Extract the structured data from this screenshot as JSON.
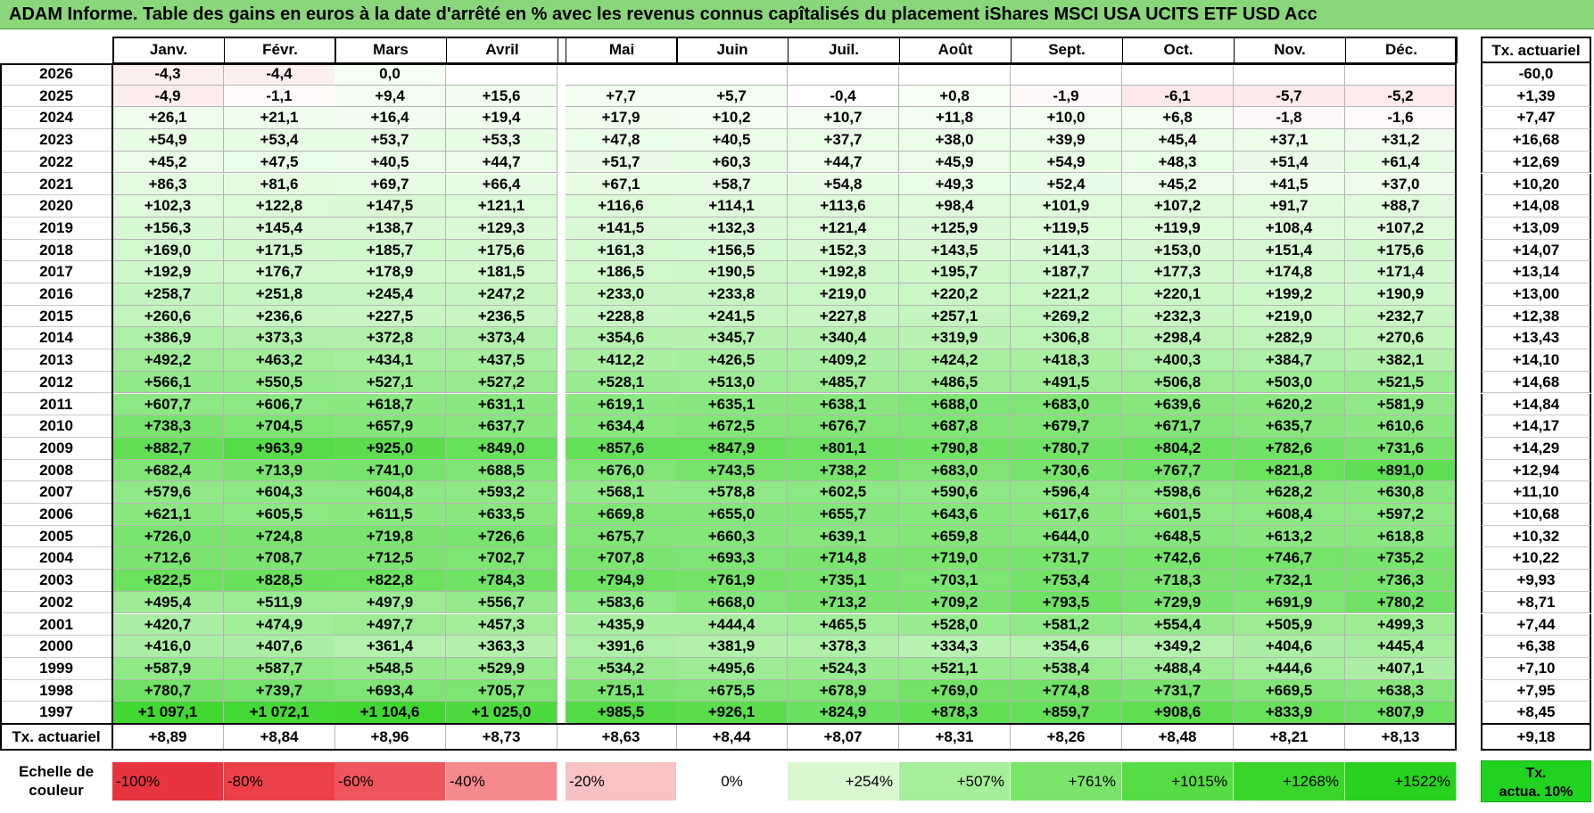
{
  "title": "ADAM Informe. Table des gains en euros à la date d'arrêté en % avec les revenus connus capîtalisés du placement iShares MSCI USA UCITS ETF USD Acc",
  "months": [
    "Janv.",
    "Févr.",
    "Mars",
    "Avril",
    "Mai",
    "Juin",
    "Juil.",
    "Août",
    "Sept.",
    "Oct.",
    "Nov.",
    "Déc."
  ],
  "right_header": "Tx. actuariel",
  "rows": [
    {
      "year": "2026",
      "values": [
        "-4,3",
        "-4,4",
        "0,0",
        "",
        "",
        "",
        "",
        "",
        "",
        "",
        "",
        ""
      ],
      "rate": "-60,0"
    },
    {
      "year": "2025",
      "values": [
        "-4,9",
        "-1,1",
        "+9,4",
        "+15,6",
        "+7,7",
        "+5,7",
        "-0,4",
        "+0,8",
        "-1,9",
        "-6,1",
        "-5,7",
        "-5,2"
      ],
      "rate": "+1,39"
    },
    {
      "year": "2024",
      "values": [
        "+26,1",
        "+21,1",
        "+16,4",
        "+19,4",
        "+17,9",
        "+10,2",
        "+10,7",
        "+11,8",
        "+10,0",
        "+6,8",
        "-1,8",
        "-1,6"
      ],
      "rate": "+7,47"
    },
    {
      "year": "2023",
      "values": [
        "+54,9",
        "+53,4",
        "+53,7",
        "+53,3",
        "+47,8",
        "+40,5",
        "+37,7",
        "+38,0",
        "+39,9",
        "+45,4",
        "+37,1",
        "+31,2"
      ],
      "rate": "+16,68"
    },
    {
      "year": "2022",
      "values": [
        "+45,2",
        "+47,5",
        "+40,5",
        "+44,7",
        "+51,7",
        "+60,3",
        "+44,7",
        "+45,9",
        "+54,9",
        "+48,3",
        "+51,4",
        "+61,4"
      ],
      "rate": "+12,69"
    },
    {
      "year": "2021",
      "values": [
        "+86,3",
        "+81,6",
        "+69,7",
        "+66,4",
        "+67,1",
        "+58,7",
        "+54,8",
        "+49,3",
        "+52,4",
        "+45,2",
        "+41,5",
        "+37,0"
      ],
      "rate": "+10,20"
    },
    {
      "year": "2020",
      "values": [
        "+102,3",
        "+122,8",
        "+147,5",
        "+121,1",
        "+116,6",
        "+114,1",
        "+113,6",
        "+98,4",
        "+101,9",
        "+107,2",
        "+91,7",
        "+88,7"
      ],
      "rate": "+14,08"
    },
    {
      "year": "2019",
      "values": [
        "+156,3",
        "+145,4",
        "+138,7",
        "+129,3",
        "+141,5",
        "+132,3",
        "+121,4",
        "+125,9",
        "+119,5",
        "+119,9",
        "+108,4",
        "+107,2"
      ],
      "rate": "+13,09"
    },
    {
      "year": "2018",
      "values": [
        "+169,0",
        "+171,5",
        "+185,7",
        "+175,6",
        "+161,3",
        "+156,5",
        "+152,3",
        "+143,5",
        "+141,3",
        "+153,0",
        "+151,4",
        "+175,6"
      ],
      "rate": "+14,07"
    },
    {
      "year": "2017",
      "values": [
        "+192,9",
        "+176,7",
        "+178,9",
        "+181,5",
        "+186,5",
        "+190,5",
        "+192,8",
        "+195,7",
        "+187,7",
        "+177,3",
        "+174,8",
        "+171,4"
      ],
      "rate": "+13,14"
    },
    {
      "year": "2016",
      "values": [
        "+258,7",
        "+251,8",
        "+245,4",
        "+247,2",
        "+233,0",
        "+233,8",
        "+219,0",
        "+220,2",
        "+221,2",
        "+220,1",
        "+199,2",
        "+190,9"
      ],
      "rate": "+13,00"
    },
    {
      "year": "2015",
      "values": [
        "+260,6",
        "+236,6",
        "+227,5",
        "+236,5",
        "+228,8",
        "+241,5",
        "+227,8",
        "+257,1",
        "+269,2",
        "+232,3",
        "+219,0",
        "+232,7"
      ],
      "rate": "+12,38"
    },
    {
      "year": "2014",
      "values": [
        "+386,9",
        "+373,3",
        "+372,8",
        "+373,4",
        "+354,6",
        "+345,7",
        "+340,4",
        "+319,9",
        "+306,8",
        "+298,4",
        "+282,9",
        "+270,6"
      ],
      "rate": "+13,43"
    },
    {
      "year": "2013",
      "values": [
        "+492,2",
        "+463,2",
        "+434,1",
        "+437,5",
        "+412,2",
        "+426,5",
        "+409,2",
        "+424,2",
        "+418,3",
        "+400,3",
        "+384,7",
        "+382,1"
      ],
      "rate": "+14,10"
    },
    {
      "year": "2012",
      "values": [
        "+566,1",
        "+550,5",
        "+527,1",
        "+527,2",
        "+528,1",
        "+513,0",
        "+485,7",
        "+486,5",
        "+491,5",
        "+506,8",
        "+503,0",
        "+521,5"
      ],
      "rate": "+14,68"
    },
    {
      "year": "2011",
      "values": [
        "+607,7",
        "+606,7",
        "+618,7",
        "+631,1",
        "+619,1",
        "+635,1",
        "+638,1",
        "+688,0",
        "+683,0",
        "+639,6",
        "+620,2",
        "+581,9"
      ],
      "rate": "+14,84"
    },
    {
      "year": "2010",
      "values": [
        "+738,3",
        "+704,5",
        "+657,9",
        "+637,7",
        "+634,4",
        "+672,5",
        "+676,7",
        "+687,8",
        "+679,7",
        "+671,7",
        "+635,7",
        "+610,6"
      ],
      "rate": "+14,17"
    },
    {
      "year": "2009",
      "values": [
        "+882,7",
        "+963,9",
        "+925,0",
        "+849,0",
        "+857,6",
        "+847,9",
        "+801,1",
        "+790,8",
        "+780,7",
        "+804,2",
        "+782,6",
        "+731,6"
      ],
      "rate": "+14,29"
    },
    {
      "year": "2008",
      "values": [
        "+682,4",
        "+713,9",
        "+741,0",
        "+688,5",
        "+676,0",
        "+743,5",
        "+738,2",
        "+683,0",
        "+730,6",
        "+767,7",
        "+821,8",
        "+891,0"
      ],
      "rate": "+12,94"
    },
    {
      "year": "2007",
      "values": [
        "+579,6",
        "+604,3",
        "+604,8",
        "+593,2",
        "+568,1",
        "+578,8",
        "+602,5",
        "+590,6",
        "+596,4",
        "+598,6",
        "+628,2",
        "+630,8"
      ],
      "rate": "+11,10"
    },
    {
      "year": "2006",
      "values": [
        "+621,1",
        "+605,5",
        "+611,5",
        "+633,5",
        "+669,8",
        "+655,0",
        "+655,7",
        "+643,6",
        "+617,6",
        "+601,5",
        "+608,4",
        "+597,2"
      ],
      "rate": "+10,68"
    },
    {
      "year": "2005",
      "values": [
        "+726,0",
        "+724,8",
        "+719,8",
        "+726,6",
        "+675,7",
        "+660,3",
        "+639,1",
        "+659,8",
        "+644,0",
        "+648,5",
        "+613,2",
        "+618,8"
      ],
      "rate": "+10,32"
    },
    {
      "year": "2004",
      "values": [
        "+712,6",
        "+708,7",
        "+712,5",
        "+702,7",
        "+707,8",
        "+693,3",
        "+714,8",
        "+719,0",
        "+731,7",
        "+742,6",
        "+746,7",
        "+735,2"
      ],
      "rate": "+10,22"
    },
    {
      "year": "2003",
      "values": [
        "+822,5",
        "+828,5",
        "+822,8",
        "+784,3",
        "+794,9",
        "+761,9",
        "+735,1",
        "+703,1",
        "+753,4",
        "+718,3",
        "+732,1",
        "+736,3"
      ],
      "rate": "+9,93"
    },
    {
      "year": "2002",
      "values": [
        "+495,4",
        "+511,9",
        "+497,9",
        "+556,7",
        "+583,6",
        "+668,0",
        "+713,2",
        "+709,2",
        "+793,5",
        "+729,9",
        "+691,9",
        "+780,2"
      ],
      "rate": "+8,71"
    },
    {
      "year": "2001",
      "values": [
        "+420,7",
        "+474,9",
        "+497,7",
        "+457,3",
        "+435,9",
        "+444,4",
        "+465,5",
        "+528,0",
        "+581,2",
        "+554,4",
        "+505,9",
        "+499,3"
      ],
      "rate": "+7,44"
    },
    {
      "year": "2000",
      "values": [
        "+416,0",
        "+407,6",
        "+361,4",
        "+363,3",
        "+391,6",
        "+381,9",
        "+378,3",
        "+334,3",
        "+354,6",
        "+349,2",
        "+404,6",
        "+445,4"
      ],
      "rate": "+6,38"
    },
    {
      "year": "1999",
      "values": [
        "+587,9",
        "+587,7",
        "+548,5",
        "+529,9",
        "+534,2",
        "+495,6",
        "+524,3",
        "+521,1",
        "+538,4",
        "+488,4",
        "+444,6",
        "+407,1"
      ],
      "rate": "+7,10"
    },
    {
      "year": "1998",
      "values": [
        "+780,7",
        "+739,7",
        "+693,4",
        "+705,7",
        "+715,1",
        "+675,5",
        "+678,9",
        "+769,0",
        "+774,8",
        "+731,7",
        "+669,5",
        "+638,3"
      ],
      "rate": "+7,95"
    },
    {
      "year": "1997",
      "values": [
        "+1 097,1",
        "+1 072,1",
        "+1 104,6",
        "+1 025,0",
        "+985,5",
        "+926,1",
        "+824,9",
        "+878,3",
        "+859,7",
        "+908,6",
        "+833,9",
        "+807,9"
      ],
      "rate": "+8,45"
    }
  ],
  "footer": {
    "label": "Tx. actuariel",
    "values": [
      "+8,89",
      "+8,84",
      "+8,96",
      "+8,73",
      "+8,63",
      "+8,44",
      "+8,07",
      "+8,31",
      "+8,26",
      "+8,48",
      "+8,21",
      "+8,13"
    ],
    "rate": "+9,18"
  },
  "legend": {
    "label_line1": "Echelle de",
    "label_line2": "couleur",
    "steps": [
      {
        "text": "-100%",
        "color": "#e8343f",
        "align": "left"
      },
      {
        "text": "-80%",
        "color": "#ec4049",
        "align": "left"
      },
      {
        "text": "-60%",
        "color": "#ef555c",
        "align": "left"
      },
      {
        "text": "-40%",
        "color": "#f48a8e",
        "align": "left"
      },
      {
        "text": "-20%",
        "color": "#f9c3c5",
        "align": "left"
      },
      {
        "text": "0%",
        "color": "#ffffff",
        "align": "center"
      },
      {
        "text": "+254%",
        "color": "#d9f8d2",
        "align": "right"
      },
      {
        "text": "+507%",
        "color": "#a7ee9a",
        "align": "right"
      },
      {
        "text": "+761%",
        "color": "#7be46a",
        "align": "right"
      },
      {
        "text": "+1015%",
        "color": "#56dc44",
        "align": "right"
      },
      {
        "text": "+1268%",
        "color": "#3bd62c",
        "align": "right"
      },
      {
        "text": "+1522%",
        "color": "#28d21e",
        "align": "right"
      }
    ],
    "special_line1": "Tx.",
    "special_line2": "actua. 10%",
    "special_color": "#21d321"
  },
  "colors": {
    "title_bar": "#8ad67a",
    "negative_max": "#f9c3c5",
    "positive_max": "#28d21e"
  }
}
